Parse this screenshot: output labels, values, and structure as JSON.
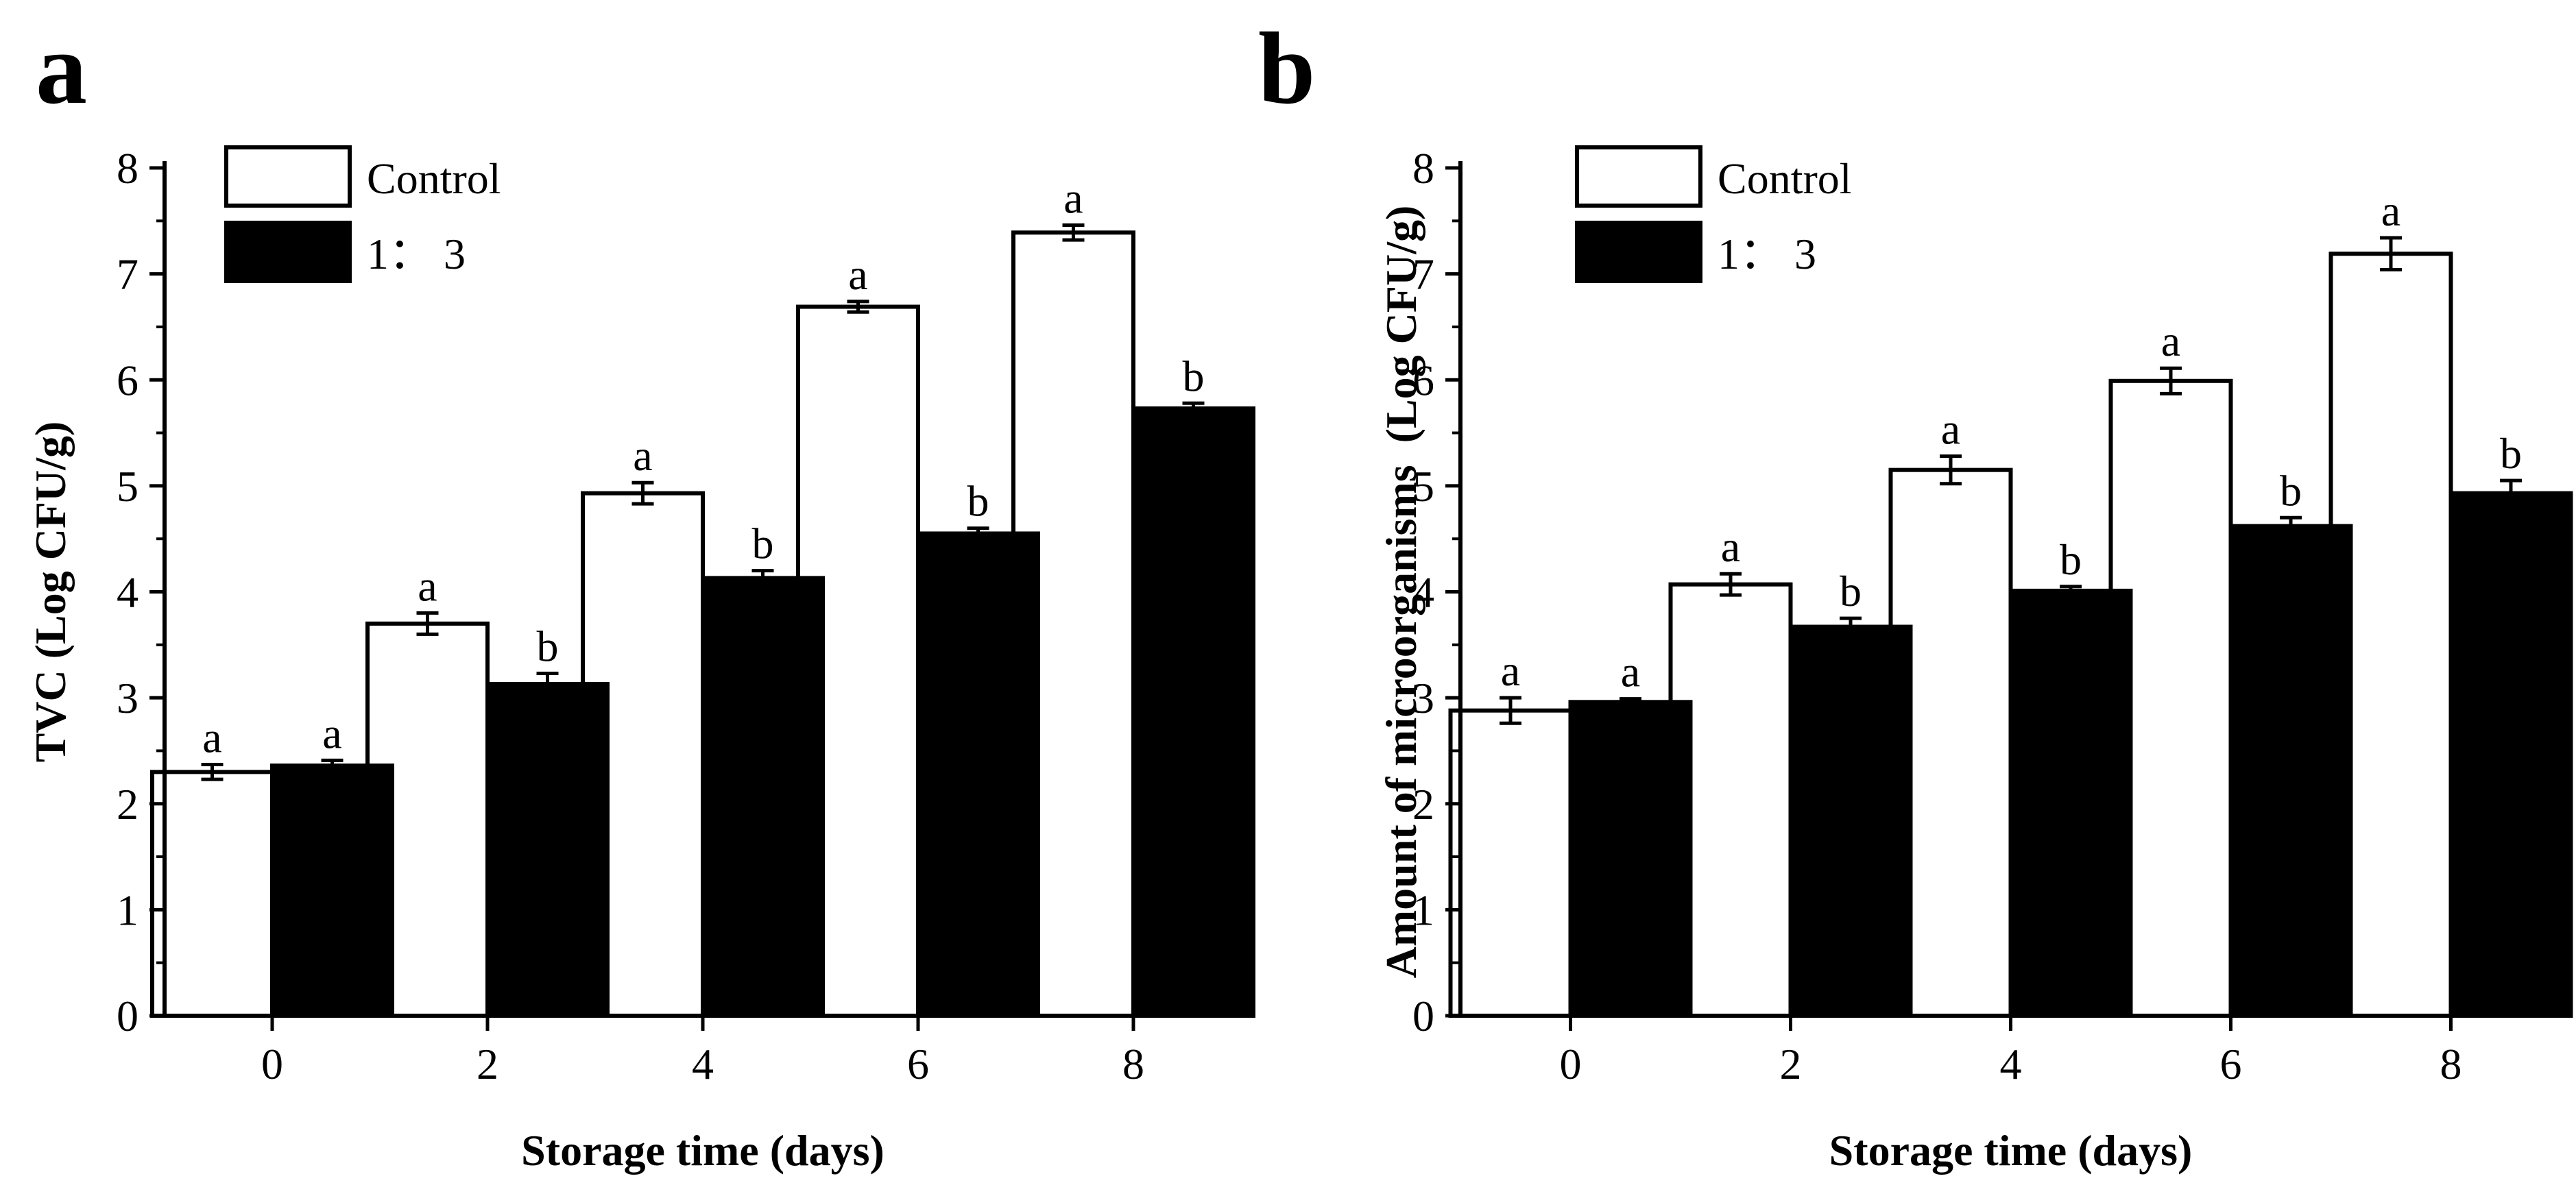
{
  "chart_data": [
    {
      "type": "bar",
      "panel_label": "a",
      "title": "",
      "xlabel": "Storage time (days)",
      "ylabel": "TVC (Log CFU/g)",
      "categories": [
        "0",
        "2",
        "4",
        "6",
        "8"
      ],
      "yticks": [
        "0",
        "1",
        "2",
        "3",
        "4",
        "5",
        "6",
        "7",
        "8"
      ],
      "ylim": [
        0,
        8
      ],
      "legend_position": "top-left",
      "series": [
        {
          "name": "Control",
          "fill": "#ffffff",
          "values": [
            2.3,
            3.7,
            4.93,
            6.69,
            7.39
          ],
          "errors": [
            0.07,
            0.1,
            0.1,
            0.05,
            0.07
          ],
          "labels": [
            "a",
            "a",
            "a",
            "a",
            "a"
          ]
        },
        {
          "name": "1： 3",
          "fill": "#000000",
          "values": [
            2.36,
            3.13,
            4.13,
            4.55,
            5.73
          ],
          "errors": [
            0.05,
            0.1,
            0.07,
            0.05,
            0.05
          ],
          "labels": [
            "a",
            "b",
            "b",
            "b",
            "b"
          ]
        }
      ]
    },
    {
      "type": "bar",
      "panel_label": "b",
      "title": "",
      "xlabel": "Storage time (days)",
      "ylabel": "Amount of microorganisms  (Log CFU/g)",
      "categories": [
        "0",
        "2",
        "4",
        "6",
        "8"
      ],
      "yticks": [
        "0",
        "1",
        "2",
        "3",
        "4",
        "5",
        "6",
        "7",
        "8"
      ],
      "ylim": [
        0,
        8
      ],
      "legend_position": "top-left",
      "series": [
        {
          "name": "Control",
          "fill": "#ffffff",
          "values": [
            2.88,
            4.07,
            5.15,
            5.99,
            7.19
          ],
          "errors": [
            0.12,
            0.1,
            0.13,
            0.12,
            0.15
          ],
          "labels": [
            "a",
            "a",
            "a",
            "a",
            "a"
          ]
        },
        {
          "name": "1： 3",
          "fill": "#000000",
          "values": [
            2.96,
            3.67,
            4.01,
            4.62,
            4.93
          ],
          "errors": [
            0.03,
            0.08,
            0.04,
            0.08,
            0.12
          ],
          "labels": [
            "a",
            "b",
            "b",
            "b",
            "b"
          ]
        }
      ]
    }
  ]
}
